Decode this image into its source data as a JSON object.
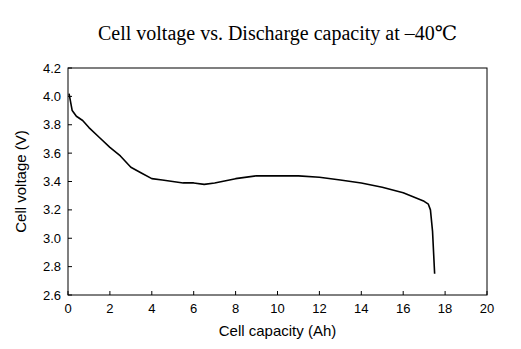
{
  "chart_data": {
    "type": "line",
    "title": "Cell voltage vs. Discharge capacity at –40℃",
    "x_label": "Cell capacity (Ah)",
    "y_label": "Cell voltage (V)",
    "x": [
      0.05,
      0.2,
      0.4,
      0.7,
      1,
      1.5,
      2,
      2.5,
      3,
      3.5,
      4,
      4.5,
      5,
      5.5,
      6,
      6.5,
      7,
      8,
      9,
      10,
      11,
      12,
      13,
      14,
      15,
      16,
      16.5,
      17,
      17.2,
      17.3,
      17.4,
      17.45,
      17.5
    ],
    "values": [
      4.02,
      3.9,
      3.86,
      3.83,
      3.78,
      3.71,
      3.64,
      3.58,
      3.5,
      3.46,
      3.42,
      3.41,
      3.4,
      3.39,
      3.39,
      3.38,
      3.39,
      3.42,
      3.44,
      3.44,
      3.44,
      3.43,
      3.41,
      3.39,
      3.36,
      3.32,
      3.29,
      3.26,
      3.24,
      3.2,
      3.05,
      2.9,
      2.75
    ],
    "color": "#000000",
    "xlim": [
      0,
      20
    ],
    "xticks": [
      0,
      2,
      4,
      6,
      8,
      10,
      12,
      14,
      16,
      18,
      20
    ],
    "ylim": [
      2.6,
      4.2
    ],
    "yticks": [
      2.6,
      2.8,
      {
        "value": 3,
        "label": "3.0"
      },
      3.2,
      3.4,
      3.6,
      3.8,
      {
        "value": 4,
        "label": "4.0"
      },
      4.2
    ],
    "grid": false
  }
}
